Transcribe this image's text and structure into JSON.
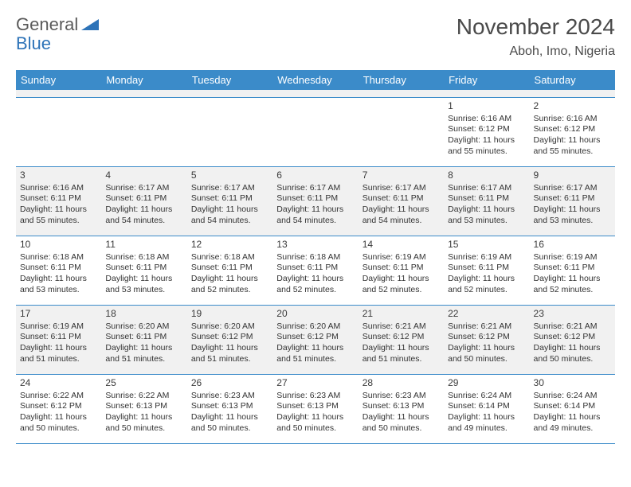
{
  "logo": {
    "part1": "General",
    "part2": "Blue"
  },
  "title": "November 2024",
  "location": "Aboh, Imo, Nigeria",
  "colors": {
    "header_bg": "#3b8bc9",
    "header_text": "#ffffff",
    "shade_bg": "#f1f1f1",
    "border": "#3b8bc9",
    "text": "#333333",
    "logo_gray": "#5a5a5a",
    "logo_blue": "#2d73b8",
    "title_color": "#4a4a4a",
    "background": "#ffffff"
  },
  "typography": {
    "title_fontsize": 28,
    "location_fontsize": 16,
    "dayheader_fontsize": 13,
    "cell_fontsize": 10.5,
    "num_fontsize": 12
  },
  "day_names": [
    "Sunday",
    "Monday",
    "Tuesday",
    "Wednesday",
    "Thursday",
    "Friday",
    "Saturday"
  ],
  "weeks": [
    [
      {
        "n": "",
        "sr": "",
        "ss": "",
        "dl": ""
      },
      {
        "n": "",
        "sr": "",
        "ss": "",
        "dl": ""
      },
      {
        "n": "",
        "sr": "",
        "ss": "",
        "dl": ""
      },
      {
        "n": "",
        "sr": "",
        "ss": "",
        "dl": ""
      },
      {
        "n": "",
        "sr": "",
        "ss": "",
        "dl": ""
      },
      {
        "n": "1",
        "sr": "Sunrise: 6:16 AM",
        "ss": "Sunset: 6:12 PM",
        "dl": "Daylight: 11 hours and 55 minutes."
      },
      {
        "n": "2",
        "sr": "Sunrise: 6:16 AM",
        "ss": "Sunset: 6:12 PM",
        "dl": "Daylight: 11 hours and 55 minutes."
      }
    ],
    [
      {
        "n": "3",
        "sr": "Sunrise: 6:16 AM",
        "ss": "Sunset: 6:11 PM",
        "dl": "Daylight: 11 hours and 55 minutes."
      },
      {
        "n": "4",
        "sr": "Sunrise: 6:17 AM",
        "ss": "Sunset: 6:11 PM",
        "dl": "Daylight: 11 hours and 54 minutes."
      },
      {
        "n": "5",
        "sr": "Sunrise: 6:17 AM",
        "ss": "Sunset: 6:11 PM",
        "dl": "Daylight: 11 hours and 54 minutes."
      },
      {
        "n": "6",
        "sr": "Sunrise: 6:17 AM",
        "ss": "Sunset: 6:11 PM",
        "dl": "Daylight: 11 hours and 54 minutes."
      },
      {
        "n": "7",
        "sr": "Sunrise: 6:17 AM",
        "ss": "Sunset: 6:11 PM",
        "dl": "Daylight: 11 hours and 54 minutes."
      },
      {
        "n": "8",
        "sr": "Sunrise: 6:17 AM",
        "ss": "Sunset: 6:11 PM",
        "dl": "Daylight: 11 hours and 53 minutes."
      },
      {
        "n": "9",
        "sr": "Sunrise: 6:17 AM",
        "ss": "Sunset: 6:11 PM",
        "dl": "Daylight: 11 hours and 53 minutes."
      }
    ],
    [
      {
        "n": "10",
        "sr": "Sunrise: 6:18 AM",
        "ss": "Sunset: 6:11 PM",
        "dl": "Daylight: 11 hours and 53 minutes."
      },
      {
        "n": "11",
        "sr": "Sunrise: 6:18 AM",
        "ss": "Sunset: 6:11 PM",
        "dl": "Daylight: 11 hours and 53 minutes."
      },
      {
        "n": "12",
        "sr": "Sunrise: 6:18 AM",
        "ss": "Sunset: 6:11 PM",
        "dl": "Daylight: 11 hours and 52 minutes."
      },
      {
        "n": "13",
        "sr": "Sunrise: 6:18 AM",
        "ss": "Sunset: 6:11 PM",
        "dl": "Daylight: 11 hours and 52 minutes."
      },
      {
        "n": "14",
        "sr": "Sunrise: 6:19 AM",
        "ss": "Sunset: 6:11 PM",
        "dl": "Daylight: 11 hours and 52 minutes."
      },
      {
        "n": "15",
        "sr": "Sunrise: 6:19 AM",
        "ss": "Sunset: 6:11 PM",
        "dl": "Daylight: 11 hours and 52 minutes."
      },
      {
        "n": "16",
        "sr": "Sunrise: 6:19 AM",
        "ss": "Sunset: 6:11 PM",
        "dl": "Daylight: 11 hours and 52 minutes."
      }
    ],
    [
      {
        "n": "17",
        "sr": "Sunrise: 6:19 AM",
        "ss": "Sunset: 6:11 PM",
        "dl": "Daylight: 11 hours and 51 minutes."
      },
      {
        "n": "18",
        "sr": "Sunrise: 6:20 AM",
        "ss": "Sunset: 6:11 PM",
        "dl": "Daylight: 11 hours and 51 minutes."
      },
      {
        "n": "19",
        "sr": "Sunrise: 6:20 AM",
        "ss": "Sunset: 6:12 PM",
        "dl": "Daylight: 11 hours and 51 minutes."
      },
      {
        "n": "20",
        "sr": "Sunrise: 6:20 AM",
        "ss": "Sunset: 6:12 PM",
        "dl": "Daylight: 11 hours and 51 minutes."
      },
      {
        "n": "21",
        "sr": "Sunrise: 6:21 AM",
        "ss": "Sunset: 6:12 PM",
        "dl": "Daylight: 11 hours and 51 minutes."
      },
      {
        "n": "22",
        "sr": "Sunrise: 6:21 AM",
        "ss": "Sunset: 6:12 PM",
        "dl": "Daylight: 11 hours and 50 minutes."
      },
      {
        "n": "23",
        "sr": "Sunrise: 6:21 AM",
        "ss": "Sunset: 6:12 PM",
        "dl": "Daylight: 11 hours and 50 minutes."
      }
    ],
    [
      {
        "n": "24",
        "sr": "Sunrise: 6:22 AM",
        "ss": "Sunset: 6:12 PM",
        "dl": "Daylight: 11 hours and 50 minutes."
      },
      {
        "n": "25",
        "sr": "Sunrise: 6:22 AM",
        "ss": "Sunset: 6:13 PM",
        "dl": "Daylight: 11 hours and 50 minutes."
      },
      {
        "n": "26",
        "sr": "Sunrise: 6:23 AM",
        "ss": "Sunset: 6:13 PM",
        "dl": "Daylight: 11 hours and 50 minutes."
      },
      {
        "n": "27",
        "sr": "Sunrise: 6:23 AM",
        "ss": "Sunset: 6:13 PM",
        "dl": "Daylight: 11 hours and 50 minutes."
      },
      {
        "n": "28",
        "sr": "Sunrise: 6:23 AM",
        "ss": "Sunset: 6:13 PM",
        "dl": "Daylight: 11 hours and 50 minutes."
      },
      {
        "n": "29",
        "sr": "Sunrise: 6:24 AM",
        "ss": "Sunset: 6:14 PM",
        "dl": "Daylight: 11 hours and 49 minutes."
      },
      {
        "n": "30",
        "sr": "Sunrise: 6:24 AM",
        "ss": "Sunset: 6:14 PM",
        "dl": "Daylight: 11 hours and 49 minutes."
      }
    ]
  ]
}
